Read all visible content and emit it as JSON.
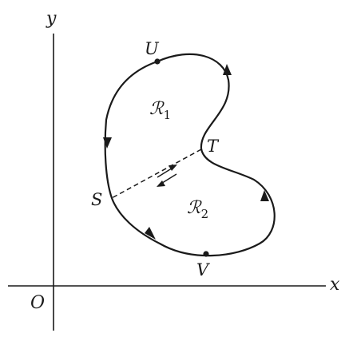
{
  "axes": {
    "x_label": "x",
    "y_label": "y",
    "origin_label": "O"
  },
  "points": {
    "U": "U",
    "T": "T",
    "S": "S",
    "V": "V"
  },
  "regions": {
    "r1_script": "ℛ",
    "r1_index": "1",
    "r2_script": "ℛ",
    "r2_index": "2"
  },
  "colors": {
    "ink": "#1a1a1a",
    "background": "#ffffff"
  }
}
